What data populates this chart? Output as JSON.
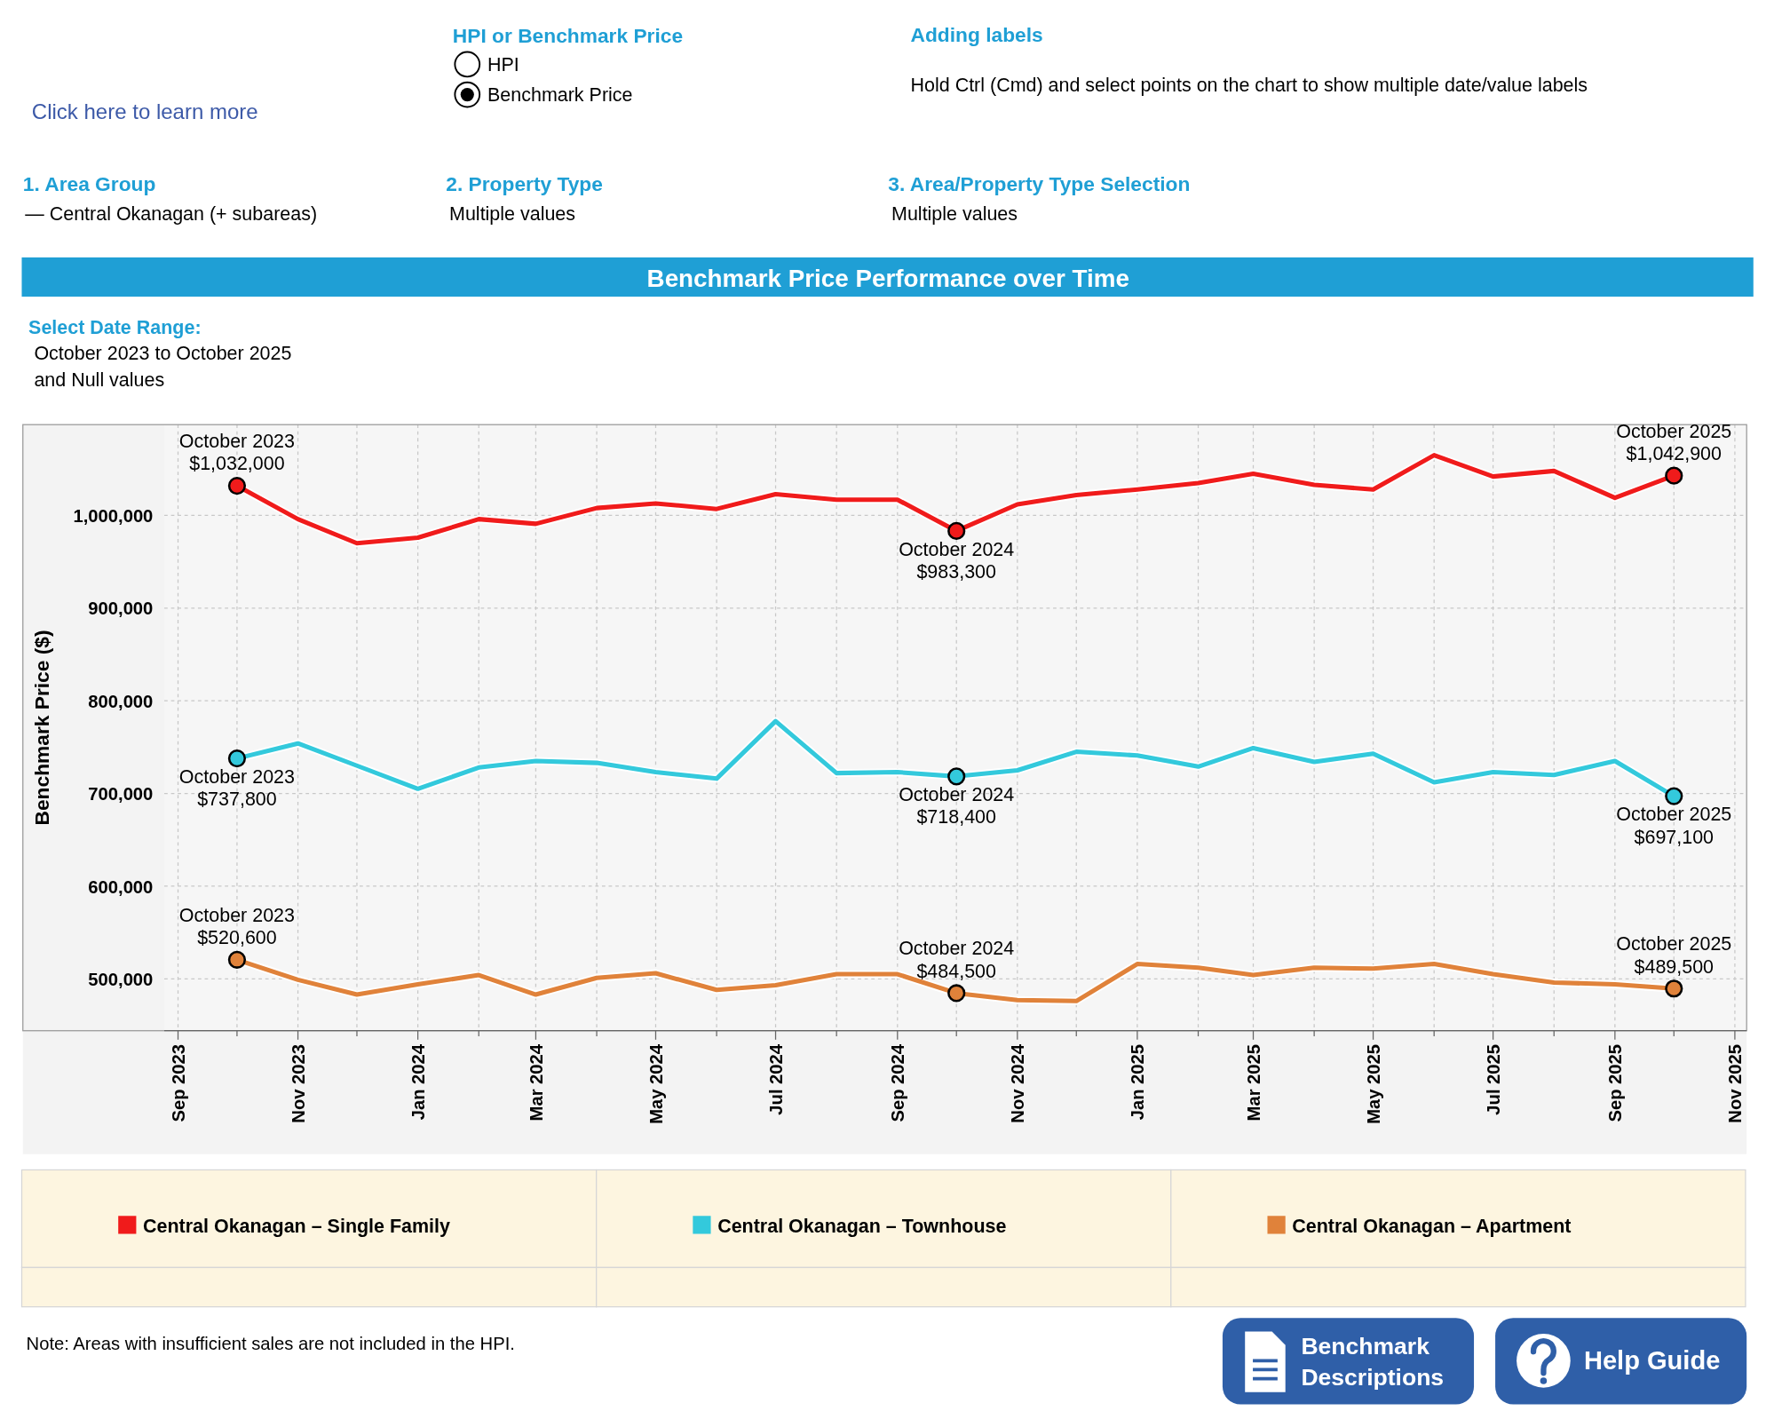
{
  "chart_data": {
    "type": "line",
    "title": "Benchmark Price Performance over Time",
    "ylabel": "Benchmark Price ($)",
    "x": [
      "2023-10",
      "2023-11",
      "2023-12",
      "2024-01",
      "2024-02",
      "2024-03",
      "2024-04",
      "2024-05",
      "2024-06",
      "2024-07",
      "2024-08",
      "2024-09",
      "2024-10",
      "2024-11",
      "2024-12",
      "2025-01",
      "2025-02",
      "2025-03",
      "2025-04",
      "2025-05",
      "2025-06",
      "2025-07",
      "2025-08",
      "2025-09",
      "2025-10"
    ],
    "series": [
      {
        "name": "Central Okanagan – Single Family",
        "color": "#f01b1b",
        "values": [
          1032000,
          996000,
          970000,
          976000,
          996000,
          991000,
          1008000,
          1013000,
          1007000,
          1023000,
          1017000,
          1017000,
          983300,
          1012000,
          1022000,
          1028000,
          1035000,
          1045000,
          1033000,
          1028000,
          1065000,
          1042000,
          1048000,
          1019000,
          1042900
        ],
        "value_labels": [
          "October 2023\n$1,032,000",
          null,
          null,
          null,
          null,
          null,
          null,
          null,
          null,
          null,
          null,
          null,
          "October 2024\n$983,300",
          null,
          null,
          null,
          null,
          null,
          null,
          null,
          null,
          null,
          null,
          null,
          "October 2025\n$1,042,900"
        ]
      },
      {
        "name": "Central Okanagan – Townhouse",
        "color": "#33c9dc",
        "values": [
          737800,
          754000,
          730000,
          705000,
          728000,
          735000,
          733000,
          723000,
          716000,
          778000,
          722000,
          723000,
          718400,
          725000,
          745000,
          741000,
          729000,
          749000,
          734000,
          743000,
          712000,
          723000,
          720000,
          735000,
          697100
        ],
        "value_labels": [
          "October 2023\n$737,800",
          null,
          null,
          null,
          null,
          null,
          null,
          null,
          null,
          null,
          null,
          null,
          "October 2024\n$718,400",
          null,
          null,
          null,
          null,
          null,
          null,
          null,
          null,
          null,
          null,
          null,
          "October 2025\n$697,100"
        ]
      },
      {
        "name": "Central Okanagan – Apartment",
        "color": "#e0823a",
        "values": [
          520600,
          499000,
          483000,
          494000,
          504000,
          483000,
          501000,
          506000,
          488000,
          493000,
          505000,
          505000,
          484500,
          477000,
          476000,
          516000,
          512000,
          504000,
          512000,
          511000,
          516000,
          505000,
          496000,
          494000,
          489500
        ],
        "value_labels": [
          "October 2023\n$520,600",
          null,
          null,
          null,
          null,
          null,
          null,
          null,
          null,
          null,
          null,
          null,
          "October 2024\n$484,500",
          null,
          null,
          null,
          null,
          null,
          null,
          null,
          null,
          null,
          null,
          null,
          "October 2025\n$489,500"
        ]
      }
    ],
    "xlim": [
      "2023-08-25",
      "2025-11-07"
    ],
    "xticks": [
      {
        "value": "2023-09",
        "label": "Sep 2023"
      },
      {
        "value": "2023-10",
        "label": null
      },
      {
        "value": "2023-11",
        "label": "Nov 2023"
      },
      {
        "value": "2023-12",
        "label": null
      },
      {
        "value": "2024-01",
        "label": "Jan 2024"
      },
      {
        "value": "2024-02",
        "label": null
      },
      {
        "value": "2024-03",
        "label": "Mar 2024"
      },
      {
        "value": "2024-04",
        "label": null
      },
      {
        "value": "2024-05",
        "label": "May 2024"
      },
      {
        "value": "2024-06",
        "label": null
      },
      {
        "value": "2024-07",
        "label": "Jul 2024"
      },
      {
        "value": "2024-08",
        "label": null
      },
      {
        "value": "2024-09",
        "label": "Sep 2024"
      },
      {
        "value": "2024-10",
        "label": null
      },
      {
        "value": "2024-11",
        "label": "Nov 2024"
      },
      {
        "value": "2024-12",
        "label": null
      },
      {
        "value": "2025-01",
        "label": "Jan 2025"
      },
      {
        "value": "2025-02",
        "label": null
      },
      {
        "value": "2025-03",
        "label": "Mar 2025"
      },
      {
        "value": "2025-04",
        "label": null
      },
      {
        "value": "2025-05",
        "label": "May 2025"
      },
      {
        "value": "2025-06",
        "label": null
      },
      {
        "value": "2025-07",
        "label": "Jul 2025"
      },
      {
        "value": "2025-08",
        "label": null
      },
      {
        "value": "2025-09",
        "label": "Sep 2025"
      },
      {
        "value": "2025-10",
        "label": null
      },
      {
        "value": "2025-11",
        "label": "Nov 2025"
      }
    ],
    "ylim": [
      444000,
      1098000
    ],
    "yticks": [
      {
        "value": 500000,
        "label": "500,000"
      },
      {
        "value": 600000,
        "label": "600,000"
      },
      {
        "value": 700000,
        "label": "700,000"
      },
      {
        "value": 800000,
        "label": "800,000"
      },
      {
        "value": 900000,
        "label": "900,000"
      },
      {
        "value": 1000000,
        "label": "1,000,000"
      }
    ],
    "grid": true,
    "legend": "bottom",
    "annotations": [
      "Click here to learn more",
      "HPI or Benchmark Price",
      "HPI",
      "Benchmark Price",
      "Adding labels",
      "Hold Ctrl (Cmd) and select points on the chart to show multiple date/value labels",
      "1. Area Group",
      "— Central Okanagan (+ subareas)",
      "2. Property Type",
      "Multiple values",
      "3. Area/Property Type Selection",
      "Multiple values",
      "Select Date Range:",
      "October 2023 to October 2025",
      "and Null values",
      "Note: Areas with insufficient sales are not included in the HPI.",
      "Benchmark Descriptions",
      "Help Guide"
    ]
  }
}
